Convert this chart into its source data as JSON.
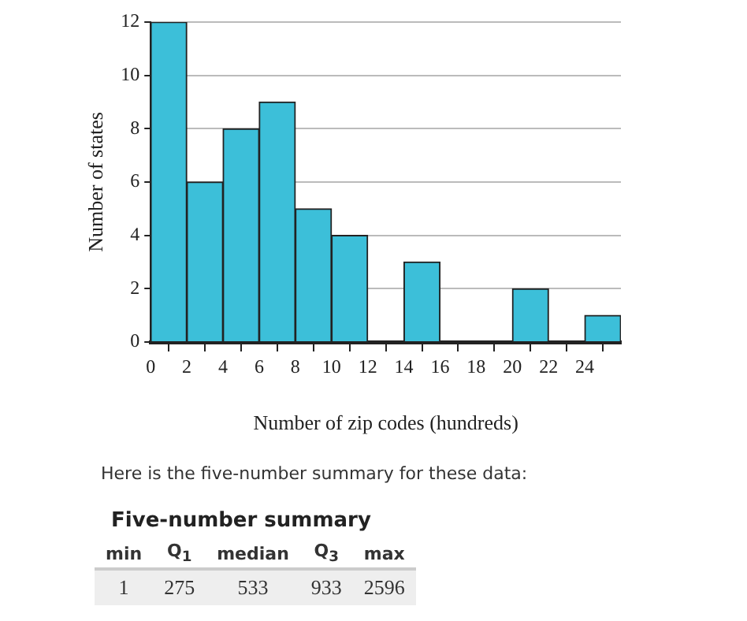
{
  "chart_data": {
    "type": "histogram",
    "xlabel": "Number of zip codes (hundreds)",
    "ylabel": "Number of states",
    "bins": [
      0,
      2,
      4,
      6,
      8,
      10,
      12,
      14,
      16,
      18,
      20,
      22,
      24,
      26
    ],
    "values": [
      12,
      6,
      8,
      9,
      5,
      4,
      0,
      3,
      0,
      0,
      2,
      0,
      1
    ],
    "color": "#3cbfd9",
    "xlim": [
      0,
      26
    ],
    "xticks": [
      0,
      2,
      4,
      6,
      8,
      10,
      12,
      14,
      16,
      18,
      20,
      22,
      24
    ],
    "ylim": [
      0,
      12
    ],
    "yticks": [
      0,
      2,
      4,
      6,
      8,
      10,
      12
    ],
    "grid": "y",
    "annotations": [
      "Here is the five-number summary for these data:",
      "Five-number summary",
      "min",
      "Q$_{1}$",
      "median",
      "Q$_{3}$",
      "max",
      "1",
      "275",
      "533",
      "933",
      "2596"
    ]
  }
}
